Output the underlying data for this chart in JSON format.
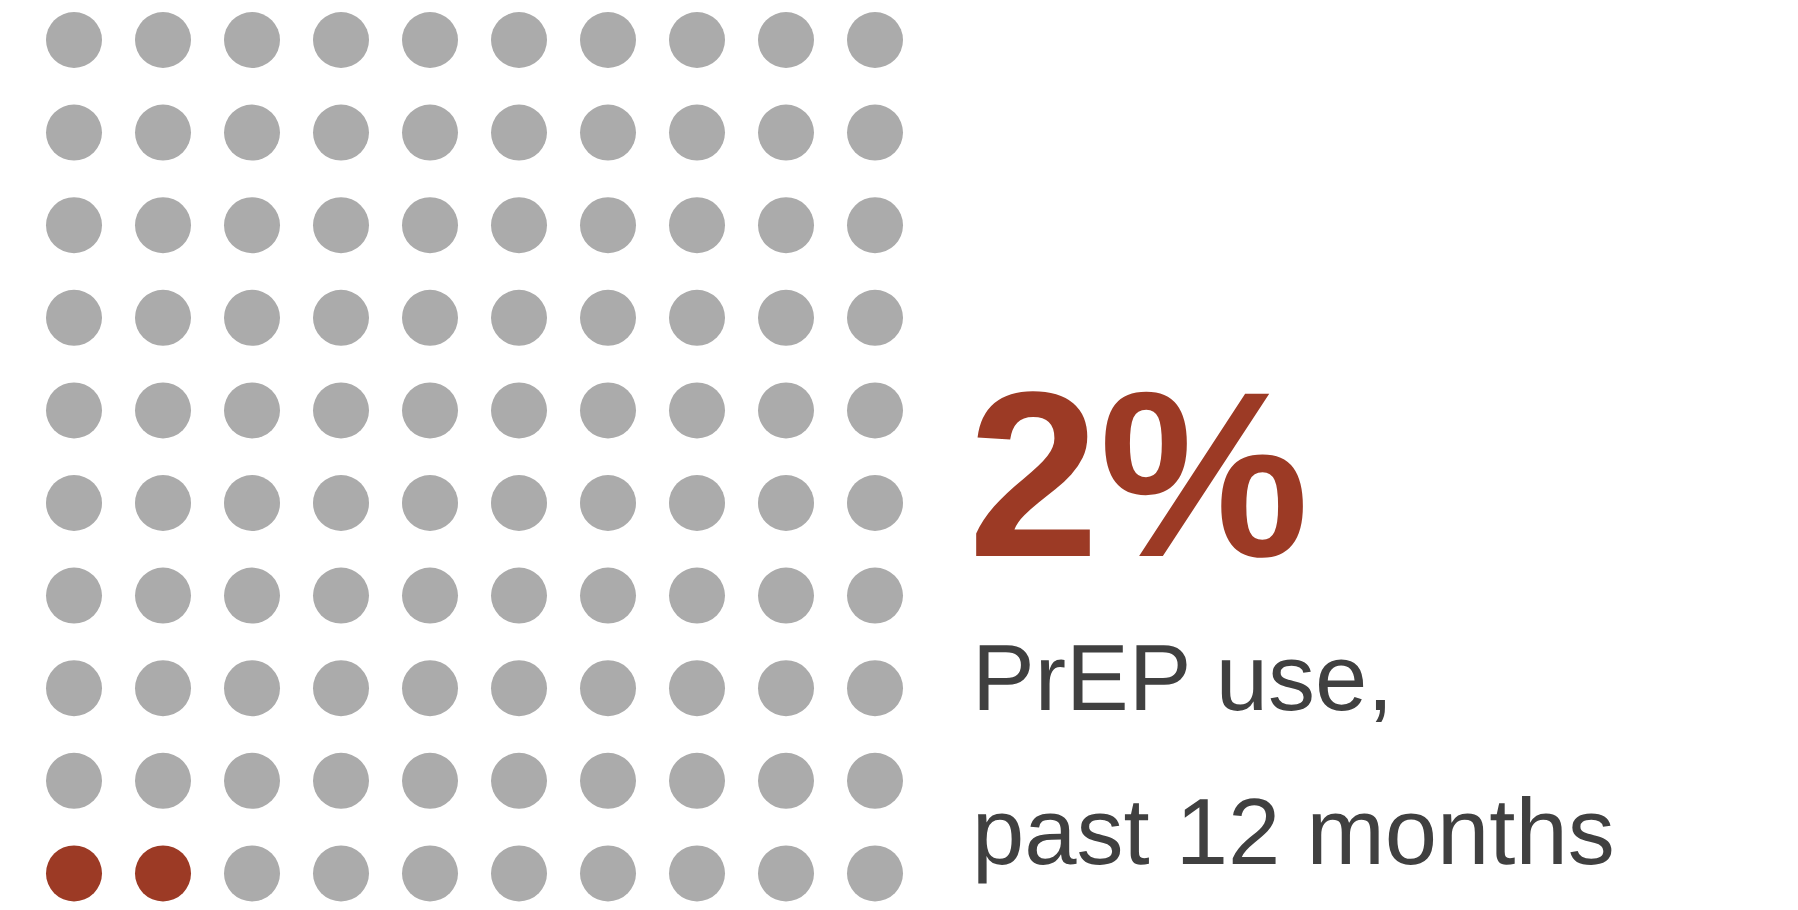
{
  "chart_data": {
    "type": "other",
    "values": [
      2
    ],
    "colors": [
      "#9c3a25"
    ],
    "value_labels": [
      "2%"
    ],
    "annotations": [
      "PrEP use,",
      "past 12 months"
    ]
  }
}
